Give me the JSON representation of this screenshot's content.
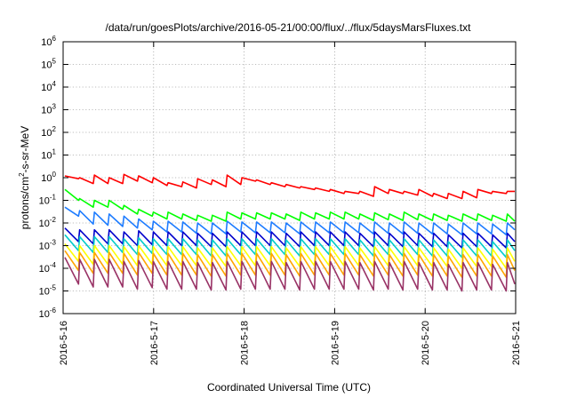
{
  "chart_data": {
    "type": "line",
    "title": "/data/run/goesPlots/archive/2016-05-21/00:00/flux/../flux/5daysMarsFluxes.txt",
    "xlabel": "Coordinated Universal Time (UTC)",
    "ylabel_main": "protons/cm",
    "ylabel_sup": "2",
    "ylabel_rest": "-s-sr-MeV",
    "y_scale": "log",
    "ylim": [
      1e-06,
      1000000.0
    ],
    "xlim": [
      "2016-05-16",
      "2016-05-21"
    ],
    "x_ticks": [
      "2016-5-16",
      "2016-5-17",
      "2016-5-18",
      "2016-5-19",
      "2016-5-20",
      "2016-5-21"
    ],
    "y_ticks": [
      {
        "base": "10",
        "exp": "-6",
        "value": 1e-06
      },
      {
        "base": "10",
        "exp": "-5",
        "value": 1e-05
      },
      {
        "base": "10",
        "exp": "-4",
        "value": 0.0001
      },
      {
        "base": "10",
        "exp": "-3",
        "value": 0.001
      },
      {
        "base": "10",
        "exp": "-2",
        "value": 0.01
      },
      {
        "base": "10",
        "exp": "-1",
        "value": 0.1
      },
      {
        "base": "10",
        "exp": "0",
        "value": 1
      },
      {
        "base": "10",
        "exp": "1",
        "value": 10
      },
      {
        "base": "10",
        "exp": "2",
        "value": 100
      },
      {
        "base": "10",
        "exp": "3",
        "value": 1000
      },
      {
        "base": "10",
        "exp": "4",
        "value": 10000
      },
      {
        "base": "10",
        "exp": "5",
        "value": 100000
      },
      {
        "base": "10",
        "exp": "6",
        "value": 1000000
      }
    ],
    "grid": true,
    "legend": "none",
    "series": [
      {
        "color": "#ff0000",
        "peaks": [
          1.2,
          1.0,
          1.3,
          1.0,
          1.4,
          1.2,
          1.0,
          0.6,
          0.65,
          0.9,
          0.8,
          1.3,
          1.0,
          0.8,
          0.6,
          0.5,
          0.4,
          0.35,
          0.3,
          0.25,
          0.25,
          0.4,
          0.3,
          0.25,
          0.3,
          0.2,
          0.2,
          0.25,
          0.3,
          0.25,
          0.25
        ],
        "troughs": [
          0.9,
          0.55,
          0.55,
          0.55,
          0.7,
          0.6,
          0.45,
          0.4,
          0.35,
          0.5,
          0.4,
          0.5,
          0.7,
          0.5,
          0.4,
          0.35,
          0.3,
          0.25,
          0.2,
          0.2,
          0.15,
          0.2,
          0.2,
          0.17,
          0.15,
          0.12,
          0.12,
          0.13,
          0.2,
          0.2
        ],
        "end": 0.25
      },
      {
        "color": "#00ff00",
        "peaks": [
          0.3,
          0.12,
          0.1,
          0.1,
          0.06,
          0.04,
          0.03,
          0.03,
          0.025,
          0.022,
          0.022,
          0.03,
          0.028,
          0.028,
          0.028,
          0.025,
          0.03,
          0.028,
          0.03,
          0.03,
          0.025,
          0.028,
          0.025,
          0.03,
          0.025,
          0.025,
          0.022,
          0.025,
          0.025,
          0.022,
          0.025
        ],
        "troughs": [
          0.1,
          0.05,
          0.05,
          0.04,
          0.025,
          0.02,
          0.015,
          0.015,
          0.013,
          0.012,
          0.012,
          0.015,
          0.015,
          0.015,
          0.015,
          0.013,
          0.015,
          0.015,
          0.015,
          0.015,
          0.013,
          0.014,
          0.013,
          0.014,
          0.013,
          0.013,
          0.012,
          0.013,
          0.013,
          0.012
        ],
        "end": 0.012
      },
      {
        "color": "#1e7cff",
        "peaks": [
          0.05,
          0.035,
          0.03,
          0.025,
          0.02,
          0.015,
          0.012,
          0.012,
          0.011,
          0.01,
          0.01,
          0.012,
          0.011,
          0.011,
          0.011,
          0.01,
          0.011,
          0.011,
          0.011,
          0.011,
          0.01,
          0.011,
          0.01,
          0.011,
          0.01,
          0.01,
          0.009,
          0.01,
          0.01,
          0.009,
          0.01
        ],
        "troughs": [
          0.02,
          0.009,
          0.008,
          0.007,
          0.006,
          0.005,
          0.004,
          0.004,
          0.0035,
          0.0033,
          0.0033,
          0.004,
          0.0037,
          0.0037,
          0.0037,
          0.0033,
          0.0037,
          0.0037,
          0.0037,
          0.0037,
          0.0033,
          0.0035,
          0.0033,
          0.0035,
          0.0033,
          0.0033,
          0.003,
          0.0033,
          0.0033,
          0.003
        ],
        "end": 0.005
      },
      {
        "color": "#0000cc",
        "peaks": [
          0.006,
          0.005,
          0.005,
          0.005,
          0.004,
          0.0045,
          0.004,
          0.004,
          0.004,
          0.0035,
          0.0035,
          0.004,
          0.004,
          0.004,
          0.004,
          0.0035,
          0.004,
          0.004,
          0.004,
          0.004,
          0.0035,
          0.004,
          0.0035,
          0.004,
          0.0035,
          0.0035,
          0.003,
          0.0035,
          0.0035,
          0.003,
          0.0035
        ],
        "troughs": [
          0.0015,
          0.0012,
          0.0012,
          0.0012,
          0.001,
          0.0011,
          0.001,
          0.001,
          0.001,
          0.0009,
          0.0009,
          0.001,
          0.001,
          0.001,
          0.001,
          0.0009,
          0.001,
          0.001,
          0.001,
          0.001,
          0.0009,
          0.001,
          0.0009,
          0.001,
          0.0009,
          0.0009,
          0.0008,
          0.0009,
          0.0009,
          0.0008
        ],
        "end": 0.0015
      },
      {
        "color": "#00cccc",
        "peaks": [
          0.003,
          0.0025,
          0.0025,
          0.0025,
          0.002,
          0.0022,
          0.002,
          0.002,
          0.002,
          0.0018,
          0.0018,
          0.002,
          0.002,
          0.002,
          0.002,
          0.0018,
          0.002,
          0.002,
          0.002,
          0.002,
          0.0018,
          0.002,
          0.0018,
          0.002,
          0.0018,
          0.0018,
          0.0015,
          0.0018,
          0.0018,
          0.0015,
          0.0018
        ],
        "troughs": [
          0.0006,
          0.0005,
          0.0005,
          0.0005,
          0.0004,
          0.00045,
          0.0004,
          0.0004,
          0.0004,
          0.00035,
          0.00035,
          0.0004,
          0.0004,
          0.0004,
          0.0004,
          0.00035,
          0.0004,
          0.0004,
          0.0004,
          0.0004,
          0.00035,
          0.0004,
          0.00035,
          0.0004,
          0.00035,
          0.00035,
          0.0003,
          0.00035,
          0.00035,
          0.0003
        ],
        "end": 0.0006
      },
      {
        "color": "#ffff00",
        "peaks": [
          0.0012,
          0.001,
          0.001,
          0.001,
          0.0009,
          0.001,
          0.0009,
          0.0009,
          0.0009,
          0.0008,
          0.0008,
          0.0009,
          0.0009,
          0.0009,
          0.0009,
          0.0008,
          0.0009,
          0.0009,
          0.0009,
          0.0009,
          0.0008,
          0.0009,
          0.0008,
          0.0009,
          0.0008,
          0.0008,
          0.0007,
          0.0008,
          0.0008,
          0.0007,
          0.0008
        ],
        "troughs": [
          0.0002,
          0.00015,
          0.00015,
          0.00015,
          0.00013,
          0.00015,
          0.00013,
          0.00013,
          0.00013,
          0.00012,
          0.00012,
          0.00013,
          0.00013,
          0.00013,
          0.00013,
          0.00012,
          0.00013,
          0.00013,
          0.00013,
          0.00013,
          0.00012,
          0.00013,
          0.00012,
          0.00013,
          0.00012,
          0.00012,
          0.0001,
          0.00012,
          0.00012,
          0.0001
        ],
        "end": 0.0002
      },
      {
        "color": "#ffa500",
        "peaks": [
          0.0006,
          0.0005,
          0.0005,
          0.0005,
          0.00045,
          0.0005,
          0.00045,
          0.00045,
          0.00045,
          0.0004,
          0.0004,
          0.00045,
          0.00045,
          0.00045,
          0.00045,
          0.0004,
          0.00045,
          0.00045,
          0.00045,
          0.00045,
          0.0004,
          0.00045,
          0.0004,
          0.00045,
          0.0004,
          0.0004,
          0.00035,
          0.0004,
          0.0004,
          0.00035,
          0.0004
        ],
        "troughs": [
          8e-05,
          6e-05,
          6e-05,
          6e-05,
          5e-05,
          6e-05,
          5e-05,
          5e-05,
          5e-05,
          4.5e-05,
          4.5e-05,
          5e-05,
          5e-05,
          5e-05,
          5e-05,
          4.5e-05,
          5e-05,
          5e-05,
          5e-05,
          5e-05,
          4.5e-05,
          5e-05,
          4.5e-05,
          5e-05,
          4.5e-05,
          4.5e-05,
          4e-05,
          4.5e-05,
          4.5e-05,
          4e-05
        ],
        "end": 8e-05
      },
      {
        "color": "#993366",
        "peaks": [
          0.0003,
          0.00025,
          0.00025,
          0.00025,
          0.0002,
          0.00022,
          0.0002,
          0.0002,
          0.0002,
          0.00018,
          0.00018,
          0.0002,
          0.0002,
          0.0002,
          0.0002,
          0.00018,
          0.0002,
          0.0002,
          0.0002,
          0.0002,
          0.00018,
          0.0002,
          0.00018,
          0.0002,
          0.00018,
          0.00018,
          0.00015,
          0.00018,
          0.00018,
          0.00015,
          0.00018
        ],
        "troughs": [
          2e-05,
          1.5e-05,
          1.5e-05,
          1.5e-05,
          1.2e-05,
          1.4e-05,
          1.2e-05,
          1.2e-05,
          1.2e-05,
          1.1e-05,
          1.1e-05,
          1.2e-05,
          1.2e-05,
          1.2e-05,
          1.2e-05,
          1.1e-05,
          1.2e-05,
          1.2e-05,
          1.2e-05,
          1.2e-05,
          1.1e-05,
          1.2e-05,
          1.1e-05,
          1.2e-05,
          1.1e-05,
          1.1e-05,
          1e-05,
          1.1e-05,
          1.1e-05,
          1e-05
        ],
        "end": 2e-05
      }
    ]
  }
}
